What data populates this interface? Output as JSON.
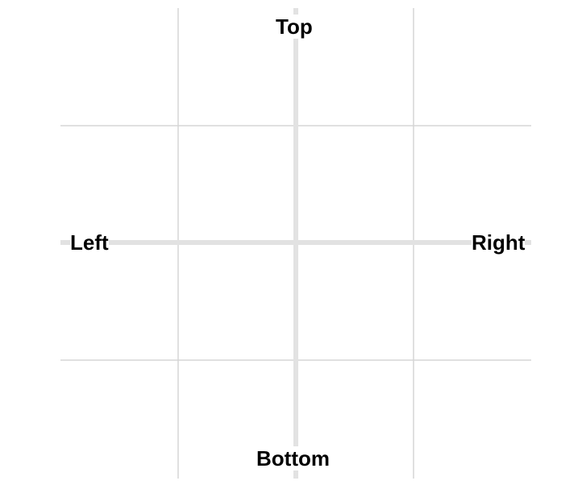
{
  "labels": {
    "top": "Top",
    "bottom": "Bottom",
    "left": "Left",
    "right": "Right"
  },
  "colors": {
    "grid_line": "#d6d6d6",
    "axis_line": "#e2e2e2",
    "label_text": "#000000",
    "background": "#ffffff"
  }
}
